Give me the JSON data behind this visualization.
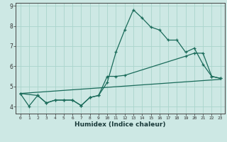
{
  "xlabel": "Humidex (Indice chaleur)",
  "bg_color": "#cde8e4",
  "grid_color": "#aad4cc",
  "line_color": "#1a6b5a",
  "xlim": [
    -0.5,
    23.5
  ],
  "ylim": [
    3.65,
    9.15
  ],
  "xticks": [
    0,
    1,
    2,
    3,
    4,
    5,
    6,
    7,
    8,
    9,
    10,
    11,
    12,
    13,
    14,
    15,
    16,
    17,
    18,
    19,
    20,
    21,
    22,
    23
  ],
  "yticks": [
    4,
    5,
    6,
    7,
    8,
    9
  ],
  "line1_x": [
    0,
    1,
    2,
    3,
    4,
    5,
    6,
    7,
    8,
    9,
    10,
    11,
    12,
    13,
    14,
    15,
    16,
    17,
    18,
    19,
    20,
    21,
    22,
    23
  ],
  "line1_y": [
    4.65,
    4.02,
    4.55,
    4.18,
    4.32,
    4.32,
    4.32,
    4.05,
    4.45,
    4.55,
    5.2,
    6.7,
    7.8,
    8.8,
    8.4,
    7.95,
    7.8,
    7.3,
    7.3,
    6.7,
    6.9,
    6.1,
    5.5,
    5.4
  ],
  "line2_x": [
    0,
    2,
    3,
    4,
    5,
    6,
    7,
    8,
    9,
    10,
    11,
    12,
    19,
    20,
    21,
    22,
    23
  ],
  "line2_y": [
    4.65,
    4.55,
    4.18,
    4.32,
    4.32,
    4.32,
    4.05,
    4.45,
    4.55,
    5.5,
    5.5,
    5.55,
    6.5,
    6.65,
    6.65,
    5.5,
    5.4
  ],
  "line3_x": [
    0,
    23
  ],
  "line3_y": [
    4.65,
    5.35
  ]
}
